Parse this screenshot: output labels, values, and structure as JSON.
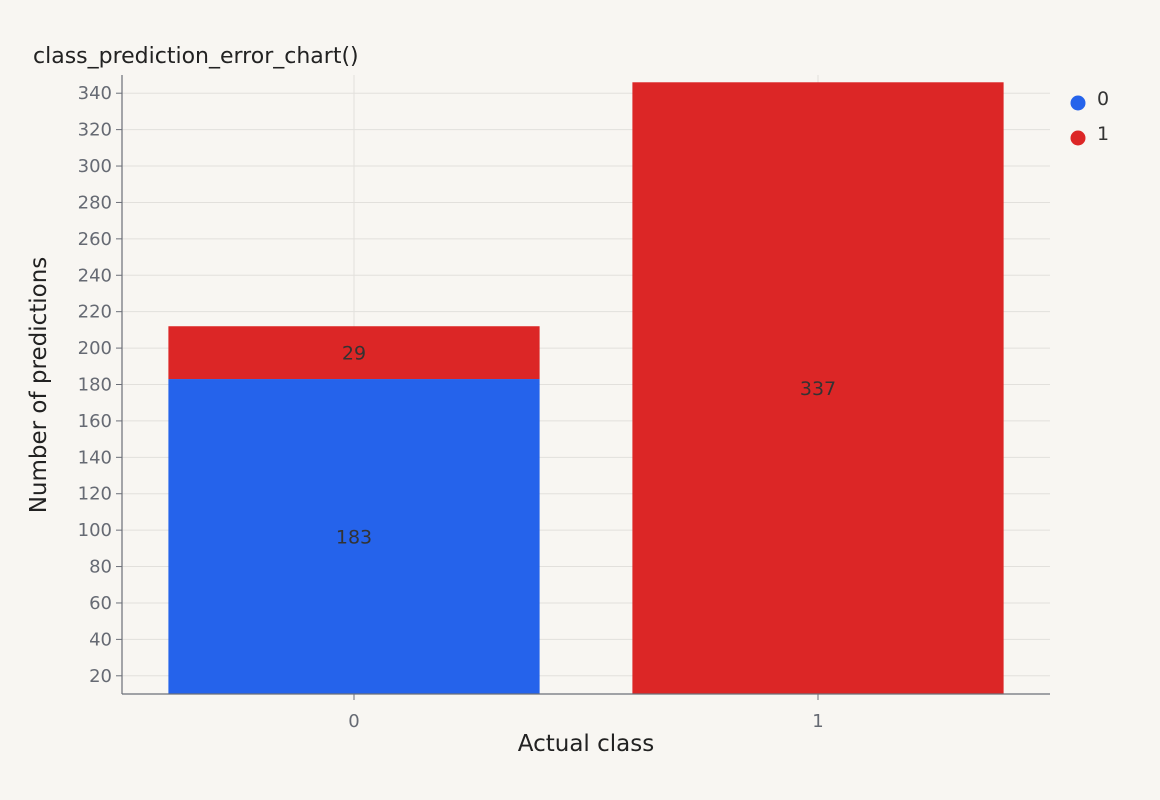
{
  "chart_data": {
    "type": "bar",
    "stacked": true,
    "title": "class_prediction_error_chart()",
    "xlabel": "Actual class",
    "ylabel": "Number of predictions",
    "categories": [
      "0",
      "1"
    ],
    "series": [
      {
        "name": "0",
        "values": [
          183,
          9
        ],
        "labels": [
          "183",
          ""
        ],
        "color": "#2563eb"
      },
      {
        "name": "1",
        "values": [
          29,
          337
        ],
        "labels": [
          "29",
          "337"
        ],
        "color": "#dc2626"
      }
    ],
    "ylim": [
      10,
      350
    ],
    "yticks": [
      20,
      40,
      60,
      80,
      100,
      120,
      140,
      160,
      180,
      200,
      220,
      240,
      260,
      280,
      300,
      320,
      340
    ],
    "grid": true,
    "legend_position": "top-right"
  }
}
